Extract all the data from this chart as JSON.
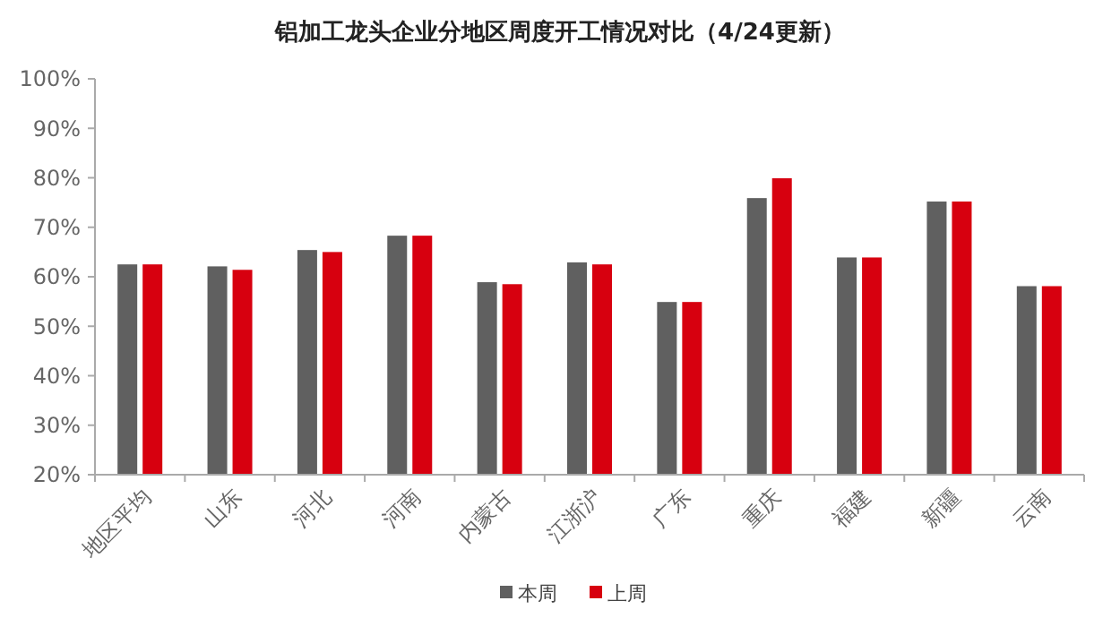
{
  "chart_data": {
    "type": "bar",
    "title": "铝加工龙头企业分地区周度开工情况对比（4/24更新）",
    "categories": [
      "地区平均",
      "山东",
      "河北",
      "河南",
      "内蒙古",
      "江浙沪",
      "广东",
      "重庆",
      "福建",
      "新疆",
      "云南"
    ],
    "series": [
      {
        "name": "本周",
        "color": "#606060",
        "values": [
          62.5,
          62.1,
          65.4,
          68.3,
          58.9,
          62.9,
          54.9,
          75.9,
          63.9,
          75.2,
          58.1
        ]
      },
      {
        "name": "上周",
        "color": "#d7000f",
        "values": [
          62.5,
          61.4,
          65.0,
          68.3,
          58.5,
          62.5,
          54.9,
          79.9,
          63.9,
          75.2,
          58.1
        ]
      }
    ],
    "ylim": [
      20,
      100
    ],
    "yticks": [
      {
        "value": 20,
        "label": "20%"
      },
      {
        "value": 30,
        "label": "30%"
      },
      {
        "value": 40,
        "label": "40%"
      },
      {
        "value": 50,
        "label": "50%"
      },
      {
        "value": 60,
        "label": "60%"
      },
      {
        "value": 70,
        "label": "70%"
      },
      {
        "value": 80,
        "label": "80%"
      },
      {
        "value": 90,
        "label": "90%"
      },
      {
        "value": 100,
        "label": "100%"
      }
    ],
    "grid": false,
    "legend": "bottom"
  }
}
